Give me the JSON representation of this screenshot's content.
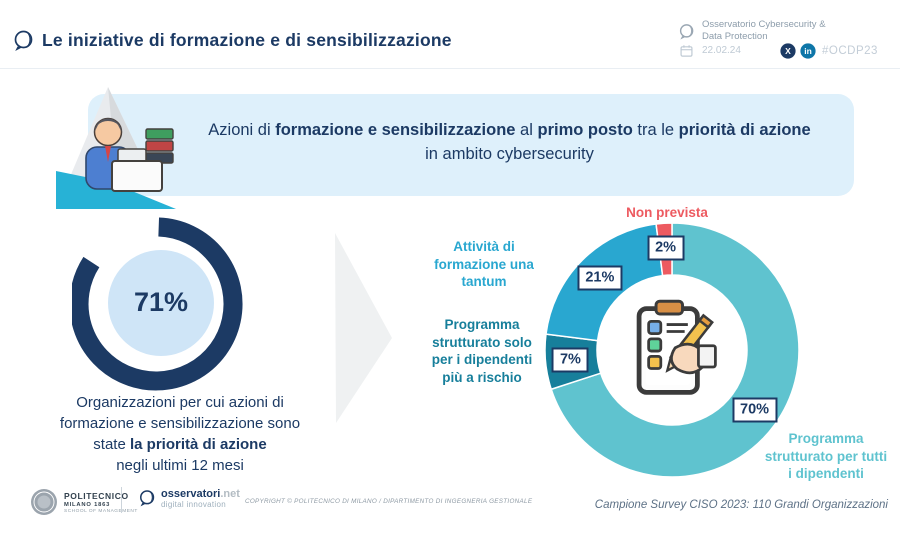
{
  "header": {
    "title": "Le iniziative di formazione e di sensibilizzazione",
    "org_line1": "Osservatorio Cybersecurity &",
    "org_line2": "Data Protection",
    "date": "22.02.24",
    "hashtag": "#OCDP23",
    "social": {
      "x": "X",
      "linkedin": "in"
    }
  },
  "colors": {
    "accent_navy": "#1c3a64",
    "banner_bg": "#def0fb",
    "red_status": "#ed5a60",
    "teal": "#5fc3cf",
    "cyan": "#29a7d0",
    "dark_teal": "#177f9b"
  },
  "banner": {
    "lines": [
      [
        {
          "t": "Azioni di ",
          "b": false
        },
        {
          "t": "formazione e sensibilizzazione",
          "b": true
        },
        {
          "t": " al ",
          "b": false
        },
        {
          "t": "primo posto",
          "b": true
        },
        {
          "t": " tra le ",
          "b": false
        },
        {
          "t": "priorità di azione",
          "b": true
        }
      ],
      [
        {
          "t": "in ambito cybersecurity",
          "b": false
        }
      ]
    ]
  },
  "chart_data": [
    {
      "type": "gauge",
      "value": 71,
      "label": "71%",
      "color": "#1c3a64",
      "caption": "Organizzazioni per cui azioni di formazione e sensibilizzazione sono state la priorità di azione negli ultimi 12 mesi",
      "caption_lines": [
        [
          {
            "t": "Organizzazioni per cui azioni di",
            "b": false
          }
        ],
        [
          {
            "t": "formazione e sensibilizzazione sono",
            "b": false
          }
        ],
        [
          {
            "t": "state ",
            "b": false
          },
          {
            "t": "la priorità di azione",
            "b": true
          }
        ],
        [
          {
            "t": "negli ultimi 12 mesi",
            "b": false
          }
        ]
      ]
    },
    {
      "type": "donut",
      "start_angle_deg": 0,
      "direction": "clockwise",
      "legend_position": "around",
      "center_icon": "clipboard-checklist-icon",
      "slices": [
        {
          "label": "Programma strutturato per tutti i dipendenti",
          "value": 70,
          "color": "#5fc3cf"
        },
        {
          "label": "Programma strutturato solo per i dipendenti più a rischio",
          "value": 7,
          "color": "#177f9b"
        },
        {
          "label": "Attività di formazione una tantum",
          "value": 21,
          "color": "#29a7d0"
        },
        {
          "label": "Non prevista",
          "value": 2,
          "color": "#ed5a60"
        }
      ],
      "source_note": "Campione Survey CISO 2023: 110 Grandi Organizzazioni"
    }
  ],
  "footer": {
    "politecnico": {
      "line1": "POLITECNICO",
      "line2": "MILANO 1863",
      "line3": "SCHOOL OF MANAGEMENT"
    },
    "osservatori": {
      "name": "osservatori",
      "net": ".net",
      "tagline": "digital innovation"
    },
    "copyright": "COPYRIGHT © POLITECNICO DI MILANO / DIPARTIMENTO DI INGEGNERIA GESTIONALE"
  }
}
